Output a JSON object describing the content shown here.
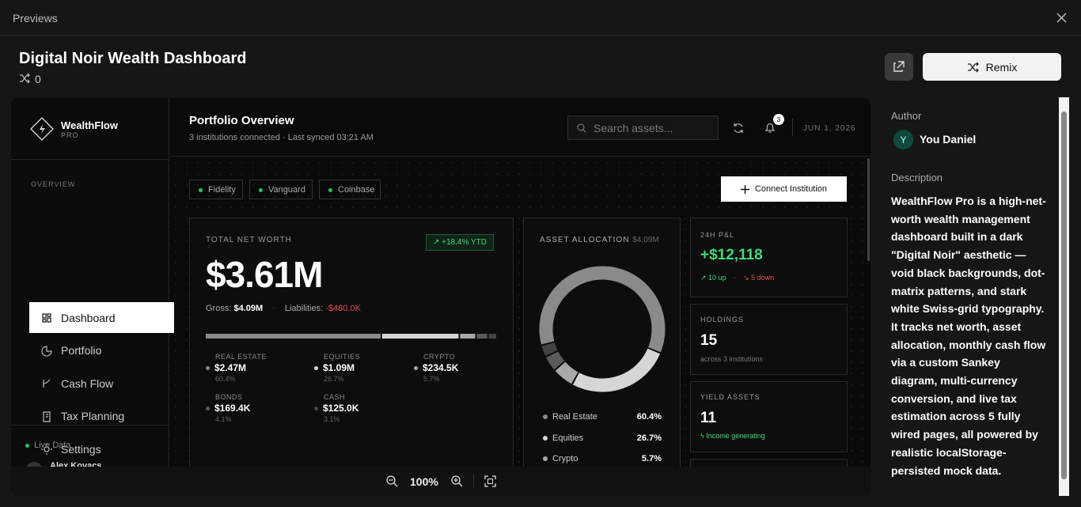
{
  "header": {
    "title": "Previews"
  },
  "project": {
    "title": "Digital Noir Wealth Dashboard",
    "remix_count": "0"
  },
  "actions": {
    "remix": "Remix"
  },
  "author": {
    "heading": "Author",
    "initial": "Y",
    "name": "You Daniel"
  },
  "description": {
    "heading": "Description",
    "text": "WealthFlow Pro is a high-net-worth wealth management dashboard built in a dark \"Digital Noir\" aesthetic — void black backgrounds, dot-matrix patterns, and stark white Swiss-grid typography. It tracks net worth, asset allocation, monthly cash flow via a custom Sankey diagram, multi-currency conversion, and live tax estimation across 5 fully wired pages, all powered by realistic localStorage-persisted mock data."
  },
  "app": {
    "brand": "WealthFlow",
    "tier": "PRO",
    "nav_section": "OVERVIEW",
    "nav": [
      "Dashboard",
      "Portfolio",
      "Cash Flow",
      "Tax Planning",
      "Settings"
    ],
    "status": "Live Data",
    "user": "Alex Kovacs",
    "page_title": "Portfolio Overview",
    "page_subtitle": "3 institutions connected · Last synced 03:21 AM",
    "search_placeholder": "Search assets...",
    "notification_count": "3",
    "date": "JUN 1, 2026",
    "institutions": [
      "Fidelity",
      "Vanguard",
      "Coinbase"
    ],
    "connect_button": "Connect Institution",
    "net_worth": {
      "label": "TOTAL NET WORTH",
      "change": "+18.4% YTD",
      "value": "$3.61M",
      "gross_label": "Gross:",
      "gross": "$4.09M",
      "liabilities_label": "Liabilities:",
      "liabilities": "-$480.0K"
    },
    "allocation": {
      "title": "ASSET ALLOCATION",
      "total": "$4.09M",
      "assets": [
        {
          "name": "Real Estate",
          "amount": "$2.47M",
          "share": 60.4,
          "share_label": "60.4%",
          "color": "#8a8a8a"
        },
        {
          "name": "Equities",
          "amount": "$1.09M",
          "share": 26.7,
          "share_label": "26.7%",
          "color": "#d6d6d6"
        },
        {
          "name": "Crypto",
          "amount": "$234.5K",
          "share": 5.7,
          "share_label": "5.7%",
          "color": "#a8a8a8"
        },
        {
          "name": "Bonds",
          "amount": "$169.4K",
          "share": 4.1,
          "share_label": "4.1%",
          "color": "#5a5a5a"
        },
        {
          "name": "Cash",
          "amount": "$125.0K",
          "share": 3.1,
          "share_label": "3.1%",
          "color": "#444444"
        }
      ]
    },
    "pnl": {
      "label": "24H P&L",
      "value": "+$12,118",
      "up": "10 up",
      "down": "5 down"
    },
    "holdings": {
      "label": "HOLDINGS",
      "value": "15",
      "note": "across 3 institutions"
    },
    "yield": {
      "label": "YIELD ASSETS",
      "value": "11",
      "note": "Income generating"
    }
  },
  "zoom": "100%"
}
